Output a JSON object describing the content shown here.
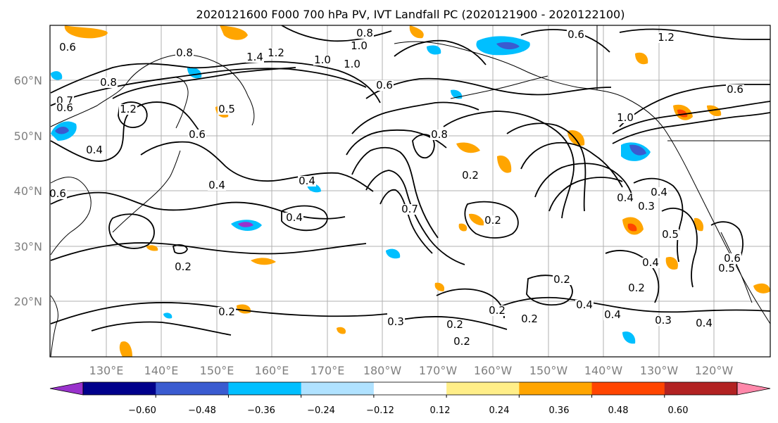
{
  "title": "2020121600 F000 700 hPa PV, IVT Landfall PC (2020121900 - 2020122100)",
  "map": {
    "lat_labels": [
      "60°N",
      "50°N",
      "40°N",
      "30°N",
      "20°N"
    ],
    "lon_labels": [
      "130°E",
      "140°E",
      "150°E",
      "160°E",
      "170°E",
      "180°W",
      "170°W",
      "160°W",
      "150°W",
      "140°W",
      "130°W",
      "120°W"
    ],
    "contour_labels": [
      "0.6",
      "1.0",
      "0.8",
      "0.6",
      "1.2",
      "0.8",
      "1.4",
      "1.2",
      "1.0",
      "0.6",
      "0.8",
      "1.0",
      "0.7",
      "0.4",
      "0.6",
      "1.2",
      "0.5",
      "0.6",
      "0.4",
      "0.4",
      "0.8",
      "1.0",
      "0.4",
      "0.6",
      "0.4",
      "0.2",
      "0.7",
      "0.2",
      "0.4",
      "0.3",
      "0.2",
      "0.4",
      "0.5",
      "0.6",
      "0.4",
      "0.2",
      "0.2",
      "0.4",
      "0.3",
      "0.2",
      "0.2",
      "0.3",
      "0.2",
      "0.2",
      "0.4",
      "0.2",
      "0.5",
      "0.6"
    ]
  },
  "colorbar": {
    "colors": [
      "#9932cc",
      "#00008b",
      "#3a5bd0",
      "#00bfff",
      "#b0e2ff",
      "#ffffff",
      "#ffee88",
      "#ffa500",
      "#ff4500",
      "#b22222",
      "#ff88aa"
    ],
    "tick_labels": [
      "−0.60",
      "−0.48",
      "−0.36",
      "−0.24",
      "−0.12",
      "0.12",
      "0.24",
      "0.36",
      "0.48",
      "0.60"
    ]
  }
}
